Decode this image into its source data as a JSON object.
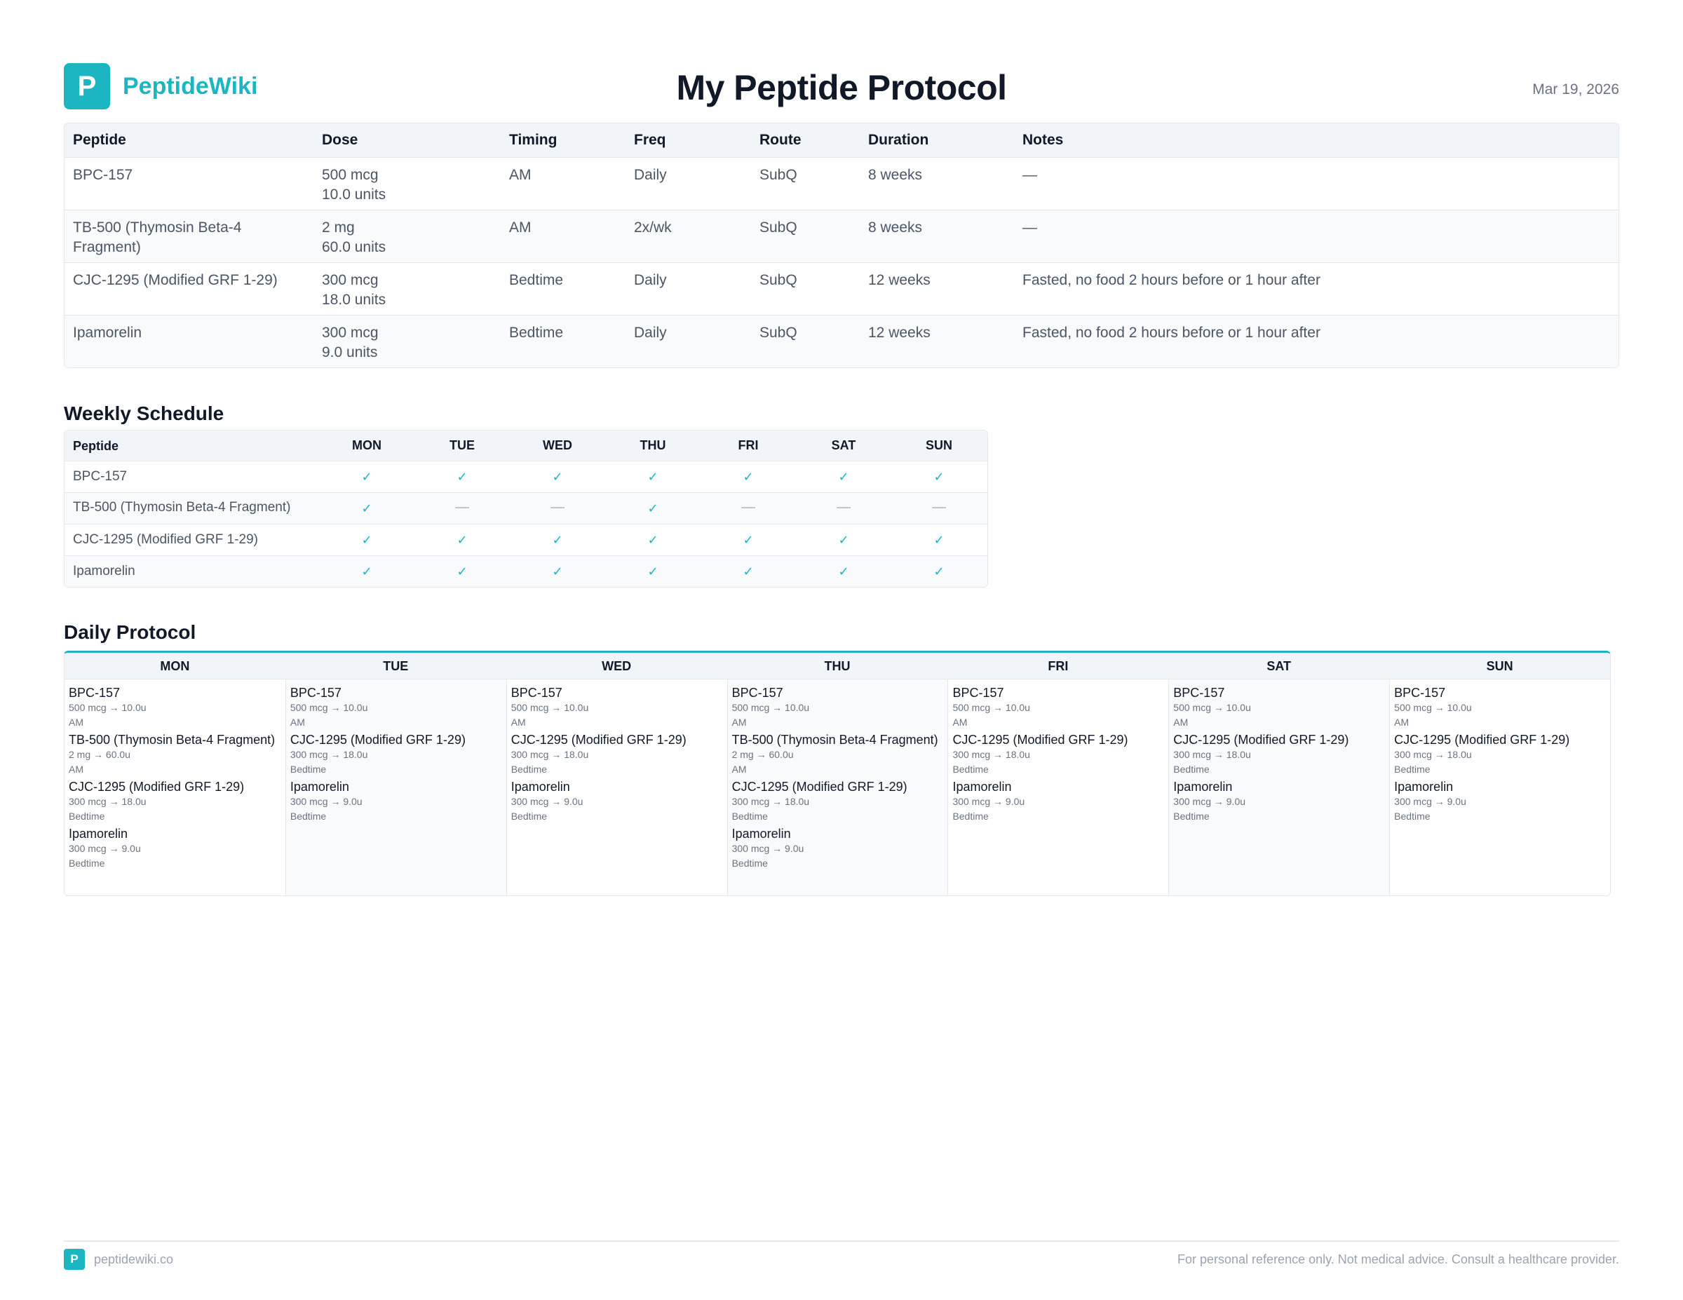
{
  "header": {
    "logo_letter": "P",
    "brand": "PeptideWiki",
    "title": "My Peptide Protocol",
    "date": "Mar 19, 2026"
  },
  "colors": {
    "accent": "#1cb5c2",
    "text_dark": "#111827",
    "text_muted": "#6b7280",
    "header_bg": "#f1f4f8",
    "border": "#e5e7eb"
  },
  "protocol_table": {
    "columns": [
      "Peptide",
      "Dose",
      "Timing",
      "Freq",
      "Route",
      "Duration",
      "Notes"
    ],
    "rows": [
      {
        "peptide": "BPC-157",
        "dose": "500 mcg",
        "units": "10.0 units",
        "timing": "AM",
        "freq": "Daily",
        "route": "SubQ",
        "duration": "8 weeks",
        "notes": "—"
      },
      {
        "peptide": "TB-500 (Thymosin Beta-4 Fragment)",
        "dose": "2 mg",
        "units": "60.0 units",
        "timing": "AM",
        "freq": "2x/wk",
        "route": "SubQ",
        "duration": "8 weeks",
        "notes": "—"
      },
      {
        "peptide": "CJC-1295 (Modified GRF 1-29)",
        "dose": "300 mcg",
        "units": "18.0 units",
        "timing": "Bedtime",
        "freq": "Daily",
        "route": "SubQ",
        "duration": "12 weeks",
        "notes": "Fasted, no food 2 hours before or 1 hour after"
      },
      {
        "peptide": "Ipamorelin",
        "dose": "300 mcg",
        "units": "9.0 units",
        "timing": "Bedtime",
        "freq": "Daily",
        "route": "SubQ",
        "duration": "12 weeks",
        "notes": "Fasted, no food 2 hours before or 1 hour after"
      }
    ]
  },
  "weekly_schedule": {
    "title": "Weekly Schedule",
    "columns": [
      "Peptide",
      "MON",
      "TUE",
      "WED",
      "THU",
      "FRI",
      "SAT",
      "SUN"
    ],
    "rows": [
      {
        "peptide": "BPC-157",
        "days": [
          true,
          true,
          true,
          true,
          true,
          true,
          true
        ]
      },
      {
        "peptide": "TB-500 (Thymosin Beta-4 Fragment)",
        "days": [
          true,
          false,
          false,
          true,
          false,
          false,
          false
        ]
      },
      {
        "peptide": "CJC-1295 (Modified GRF 1-29)",
        "days": [
          true,
          true,
          true,
          true,
          true,
          true,
          true
        ]
      },
      {
        "peptide": "Ipamorelin",
        "days": [
          true,
          true,
          true,
          true,
          true,
          true,
          true
        ]
      }
    ],
    "check_glyph": "✓",
    "off_glyph": "—"
  },
  "daily_protocol": {
    "title": "Daily Protocol",
    "days": [
      {
        "day": "MON",
        "entries": [
          {
            "name": "BPC-157",
            "dose": "500 mcg → 10.0u",
            "timing": "AM"
          },
          {
            "name": "TB-500 (Thymosin Beta-4 Fragment)",
            "dose": "2 mg → 60.0u",
            "timing": "AM"
          },
          {
            "name": "CJC-1295 (Modified GRF 1-29)",
            "dose": "300 mcg → 18.0u",
            "timing": "Bedtime"
          },
          {
            "name": "Ipamorelin",
            "dose": "300 mcg → 9.0u",
            "timing": "Bedtime"
          }
        ]
      },
      {
        "day": "TUE",
        "entries": [
          {
            "name": "BPC-157",
            "dose": "500 mcg → 10.0u",
            "timing": "AM"
          },
          {
            "name": "CJC-1295 (Modified GRF 1-29)",
            "dose": "300 mcg → 18.0u",
            "timing": "Bedtime"
          },
          {
            "name": "Ipamorelin",
            "dose": "300 mcg → 9.0u",
            "timing": "Bedtime"
          }
        ]
      },
      {
        "day": "WED",
        "entries": [
          {
            "name": "BPC-157",
            "dose": "500 mcg → 10.0u",
            "timing": "AM"
          },
          {
            "name": "CJC-1295 (Modified GRF 1-29)",
            "dose": "300 mcg → 18.0u",
            "timing": "Bedtime"
          },
          {
            "name": "Ipamorelin",
            "dose": "300 mcg → 9.0u",
            "timing": "Bedtime"
          }
        ]
      },
      {
        "day": "THU",
        "entries": [
          {
            "name": "BPC-157",
            "dose": "500 mcg → 10.0u",
            "timing": "AM"
          },
          {
            "name": "TB-500 (Thymosin Beta-4 Fragment)",
            "dose": "2 mg → 60.0u",
            "timing": "AM"
          },
          {
            "name": "CJC-1295 (Modified GRF 1-29)",
            "dose": "300 mcg → 18.0u",
            "timing": "Bedtime"
          },
          {
            "name": "Ipamorelin",
            "dose": "300 mcg → 9.0u",
            "timing": "Bedtime"
          }
        ]
      },
      {
        "day": "FRI",
        "entries": [
          {
            "name": "BPC-157",
            "dose": "500 mcg → 10.0u",
            "timing": "AM"
          },
          {
            "name": "CJC-1295 (Modified GRF 1-29)",
            "dose": "300 mcg → 18.0u",
            "timing": "Bedtime"
          },
          {
            "name": "Ipamorelin",
            "dose": "300 mcg → 9.0u",
            "timing": "Bedtime"
          }
        ]
      },
      {
        "day": "SAT",
        "entries": [
          {
            "name": "BPC-157",
            "dose": "500 mcg → 10.0u",
            "timing": "AM"
          },
          {
            "name": "CJC-1295 (Modified GRF 1-29)",
            "dose": "300 mcg → 18.0u",
            "timing": "Bedtime"
          },
          {
            "name": "Ipamorelin",
            "dose": "300 mcg → 9.0u",
            "timing": "Bedtime"
          }
        ]
      },
      {
        "day": "SUN",
        "entries": [
          {
            "name": "BPC-157",
            "dose": "500 mcg → 10.0u",
            "timing": "AM"
          },
          {
            "name": "CJC-1295 (Modified GRF 1-29)",
            "dose": "300 mcg → 18.0u",
            "timing": "Bedtime"
          },
          {
            "name": "Ipamorelin",
            "dose": "300 mcg → 9.0u",
            "timing": "Bedtime"
          }
        ]
      }
    ]
  },
  "footer": {
    "logo_letter": "P",
    "site": "peptidewiki.co",
    "disclaimer": "For personal reference only. Not medical advice. Consult a healthcare provider."
  }
}
